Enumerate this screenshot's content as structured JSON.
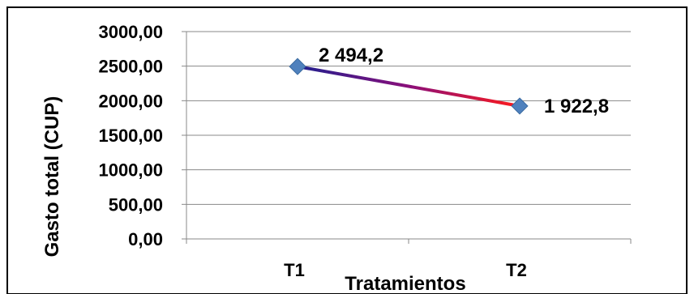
{
  "chart_data": {
    "type": "line",
    "categories": [
      "T1",
      "T2"
    ],
    "series": [
      {
        "values": [
          2494.2,
          1922.8
        ],
        "data_labels": [
          "2 494,2",
          "1  922,8"
        ]
      }
    ],
    "xlabel": "Tratamientos",
    "ylabel": "Gasto total (CUP)",
    "ylim": [
      0,
      3000
    ],
    "yticks": [
      "0,00",
      "500,00",
      "1000,00",
      "1500,00",
      "2000,00",
      "2500,00",
      "3000,00"
    ],
    "grid": true,
    "legend": "none",
    "colors": {
      "line_start": "#1f1f8f",
      "line_mid": "#8a0f7a",
      "line_end": "#ff1a1a",
      "marker": "#4f81bd",
      "grid": "#888888",
      "border": "#000000"
    }
  }
}
